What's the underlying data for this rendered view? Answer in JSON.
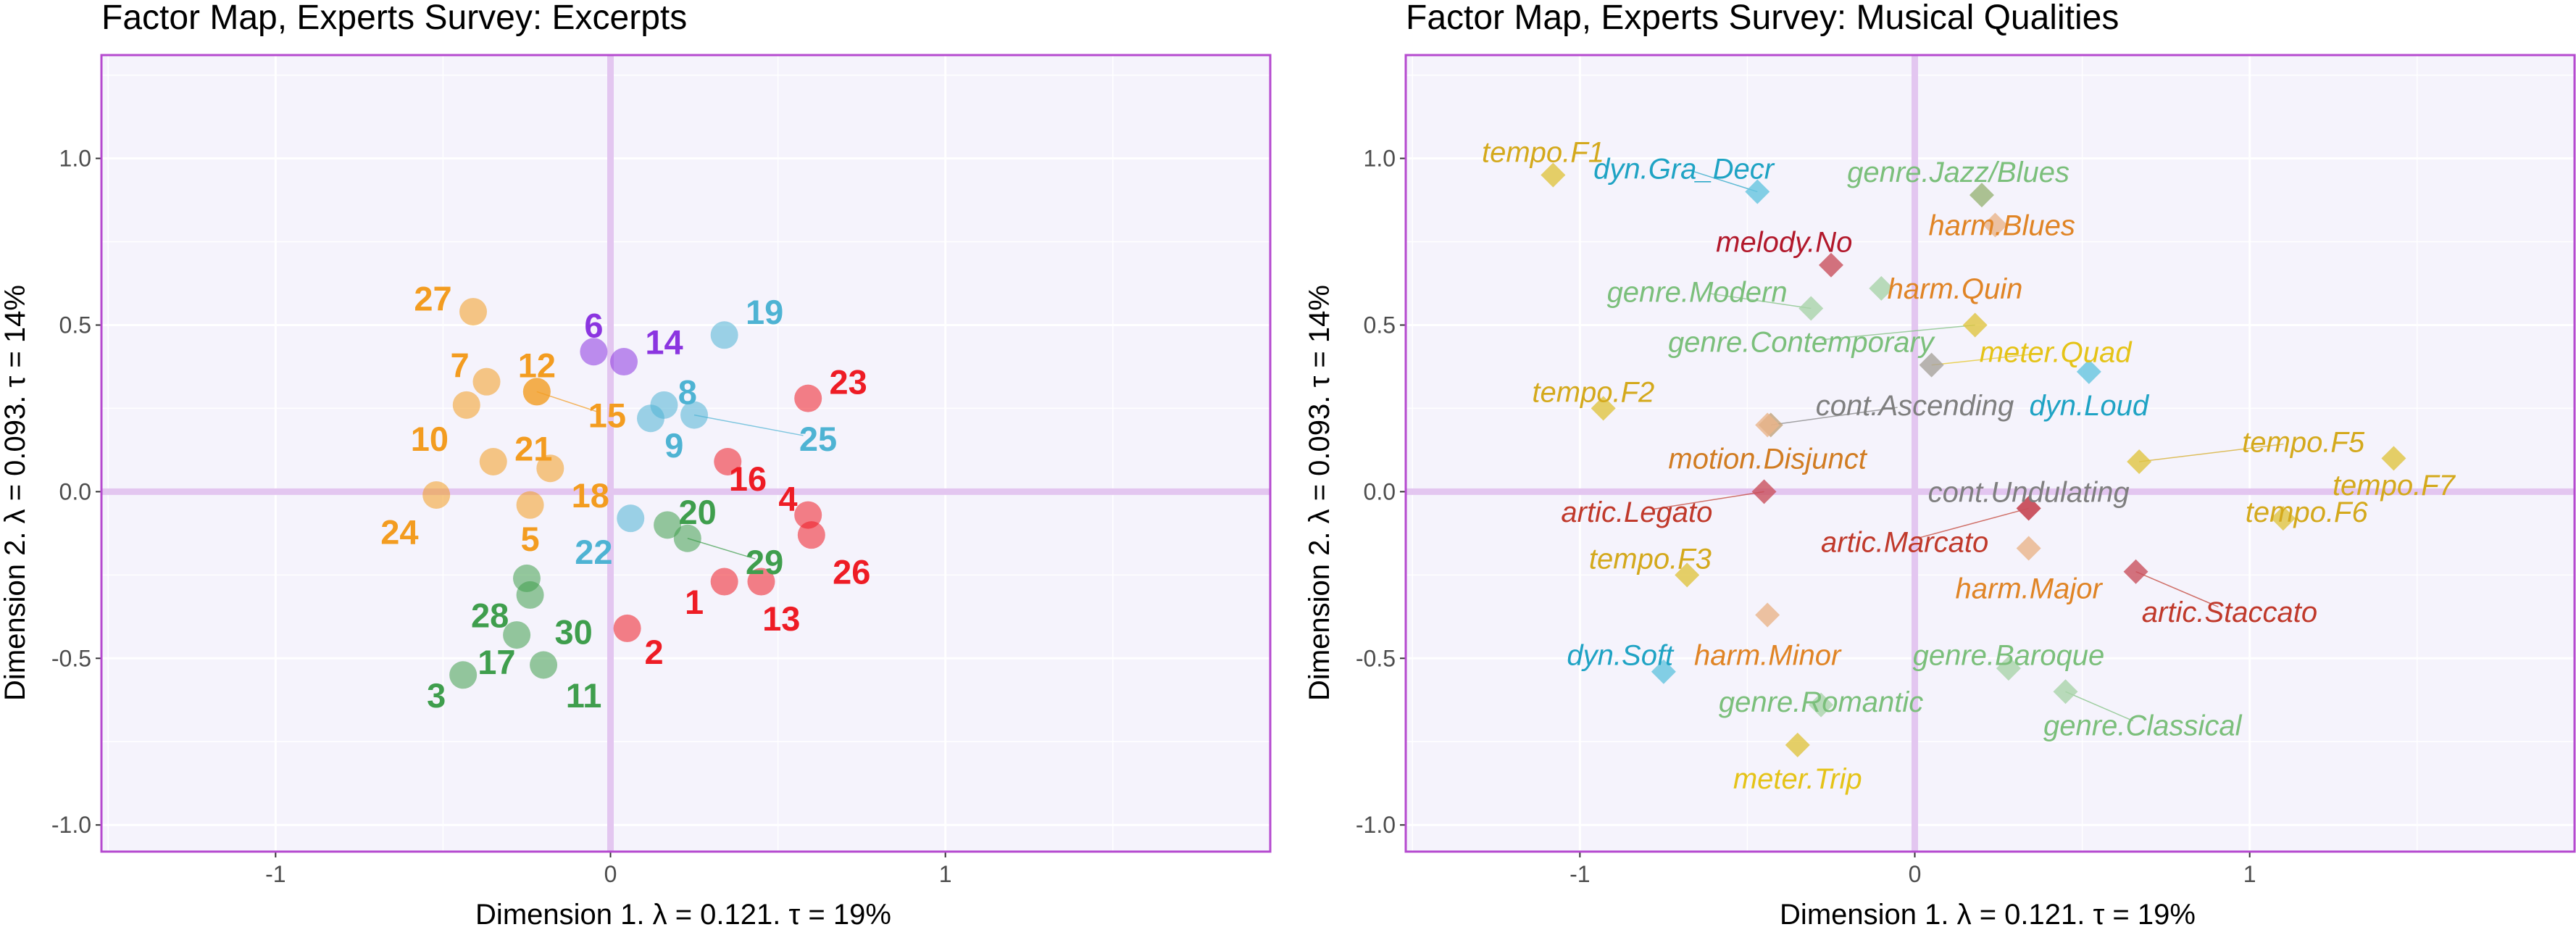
{
  "chart_data": [
    {
      "type": "scatter",
      "title": "Factor Map, Experts Survey: Excerpts",
      "xlabel": "Dimension 1.   λ = 0.121.  τ = 19%",
      "ylabel": "Dimension 2.   λ = 0.093.  τ = 14%",
      "xlim": [
        -1.52,
        1.97
      ],
      "ylim": [
        -1.08,
        1.31
      ],
      "xticks": [
        "-1",
        "0",
        "1"
      ],
      "yticks": [
        "-1.0",
        "-0.5",
        "0.0",
        "0.5",
        "1.0"
      ],
      "grid": true,
      "points": [
        {
          "label": "1",
          "x": 0.34,
          "y": -0.27,
          "color": "#EE1C25",
          "label_x": 0.25,
          "label_y": -0.33
        },
        {
          "label": "2",
          "x": 0.05,
          "y": -0.41,
          "color": "#EE1C25",
          "label_x": 0.13,
          "label_y": -0.48
        },
        {
          "label": "3",
          "x": -0.44,
          "y": -0.55,
          "color": "#3F9E4D",
          "label_x": -0.52,
          "label_y": -0.61
        },
        {
          "label": "4",
          "x": 0.59,
          "y": -0.07,
          "color": "#EE1C25",
          "label_x": 0.53,
          "label_y": -0.02
        },
        {
          "label": "5",
          "x": -0.24,
          "y": -0.04,
          "color": "#F39C20",
          "label_x": -0.24,
          "label_y": -0.14
        },
        {
          "label": "6",
          "x": -0.05,
          "y": 0.42,
          "color": "#8B35E0",
          "label_x": -0.05,
          "label_y": 0.5
        },
        {
          "label": "7",
          "x": -0.37,
          "y": 0.33,
          "color": "#F39C20",
          "label_x": -0.45,
          "label_y": 0.38
        },
        {
          "label": "8",
          "x": 0.16,
          "y": 0.26,
          "color": "#4EB3D3",
          "label_x": 0.23,
          "label_y": 0.3
        },
        {
          "label": "9",
          "x": 0.12,
          "y": 0.22,
          "color": "#4EB3D3",
          "label_x": 0.19,
          "label_y": 0.14
        },
        {
          "label": "10",
          "x": -0.43,
          "y": 0.26,
          "color": "#F39C20",
          "label_x": -0.54,
          "label_y": 0.16
        },
        {
          "label": "11",
          "x": -0.2,
          "y": -0.52,
          "color": "#3F9E4D",
          "label_x": -0.08,
          "label_y": -0.61
        },
        {
          "label": "12",
          "x": -0.22,
          "y": 0.3,
          "color": "#F39C20",
          "label_x": -0.22,
          "label_y": 0.38
        },
        {
          "label": "13",
          "x": 0.45,
          "y": -0.27,
          "color": "#EE1C25",
          "label_x": 0.51,
          "label_y": -0.38
        },
        {
          "label": "14",
          "x": 0.04,
          "y": 0.39,
          "color": "#8B35E0",
          "label_x": 0.16,
          "label_y": 0.45
        },
        {
          "label": "15",
          "x": -0.22,
          "y": 0.3,
          "color": "#F39C20",
          "label_x": -0.01,
          "label_y": 0.23
        },
        {
          "label": "16",
          "x": 0.35,
          "y": 0.09,
          "color": "#EE1C25",
          "label_x": 0.41,
          "label_y": 0.04
        },
        {
          "label": "17",
          "x": -0.28,
          "y": -0.43,
          "color": "#3F9E4D",
          "label_x": -0.34,
          "label_y": -0.51
        },
        {
          "label": "18",
          "x": -0.18,
          "y": 0.07,
          "color": "#F39C20",
          "label_x": -0.06,
          "label_y": -0.01
        },
        {
          "label": "19",
          "x": 0.34,
          "y": 0.47,
          "color": "#4EB3D3",
          "label_x": 0.46,
          "label_y": 0.54
        },
        {
          "label": "20",
          "x": 0.17,
          "y": -0.1,
          "color": "#3F9E4D",
          "label_x": 0.26,
          "label_y": -0.06
        },
        {
          "label": "21",
          "x": -0.35,
          "y": 0.09,
          "color": "#F39C20",
          "label_x": -0.23,
          "label_y": 0.13
        },
        {
          "label": "22",
          "x": 0.06,
          "y": -0.08,
          "color": "#4EB3D3",
          "label_x": -0.05,
          "label_y": -0.18
        },
        {
          "label": "23",
          "x": 0.59,
          "y": 0.28,
          "color": "#EE1C25",
          "label_x": 0.71,
          "label_y": 0.33
        },
        {
          "label": "24",
          "x": -0.52,
          "y": -0.01,
          "color": "#F39C20",
          "label_x": -0.63,
          "label_y": -0.12
        },
        {
          "label": "25",
          "x": 0.25,
          "y": 0.23,
          "color": "#4EB3D3",
          "label_x": 0.62,
          "label_y": 0.16
        },
        {
          "label": "26",
          "x": 0.6,
          "y": -0.13,
          "color": "#EE1C25",
          "label_x": 0.72,
          "label_y": -0.24
        },
        {
          "label": "27",
          "x": -0.41,
          "y": 0.54,
          "color": "#F39C20",
          "label_x": -0.53,
          "label_y": 0.58
        },
        {
          "label": "28",
          "x": -0.24,
          "y": -0.31,
          "color": "#3F9E4D",
          "label_x": -0.36,
          "label_y": -0.37
        },
        {
          "label": "29",
          "x": 0.23,
          "y": -0.14,
          "color": "#3F9E4D",
          "label_x": 0.46,
          "label_y": -0.21
        },
        {
          "label": "30",
          "x": -0.25,
          "y": -0.26,
          "color": "#3F9E4D",
          "label_x": -0.11,
          "label_y": -0.42
        }
      ]
    },
    {
      "type": "scatter",
      "title": "Factor Map, Experts Survey: Musical Qualities",
      "xlabel": "Dimension 1.   λ = 0.121.  τ = 19%",
      "ylabel": "Dimension 2.   λ = 0.093.  τ = 14%",
      "xlim": [
        -1.52,
        1.97
      ],
      "ylim": [
        -1.08,
        1.31
      ],
      "xticks": [
        "-1",
        "0",
        "1"
      ],
      "yticks": [
        "-1.0",
        "-0.5",
        "0.0",
        "0.5",
        "1.0"
      ],
      "grid": true,
      "points": [
        {
          "label": "tempo.F1",
          "x": -1.08,
          "y": 0.95,
          "color": "#E0C441",
          "text_color": "#D4A91C",
          "label_x": -1.11,
          "label_y": 1.02
        },
        {
          "label": "dyn.Gra_Decr",
          "x": -0.47,
          "y": 0.9,
          "color": "#65C4DE",
          "text_color": "#1FA3C4",
          "label_x": -0.69,
          "label_y": 0.97
        },
        {
          "label": "genre.Jazz/Blues",
          "x": 0.2,
          "y": 0.89,
          "color": "#98B477",
          "text_color": "#7BBF7B",
          "label_x": 0.13,
          "label_y": 0.96
        },
        {
          "label": "harm.Blues",
          "x": 0.24,
          "y": 0.8,
          "color": "#EAB48A",
          "text_color": "#E08425",
          "label_x": 0.26,
          "label_y": 0.8
        },
        {
          "label": "melody.No",
          "x": -0.25,
          "y": 0.68,
          "color": "#C9505D",
          "text_color": "#B2182B",
          "label_x": -0.39,
          "label_y": 0.75
        },
        {
          "label": "genre.Modern",
          "x": -0.31,
          "y": 0.55,
          "color": "#A9D3A9",
          "text_color": "#7BBF7B",
          "label_x": -0.65,
          "label_y": 0.6
        },
        {
          "label": "harm.Quin",
          "x": -0.1,
          "y": 0.61,
          "color": "#A9D3A9",
          "text_color": "#E08425",
          "label_x": 0.12,
          "label_y": 0.61
        },
        {
          "label": "genre.Contemporary",
          "x": 0.18,
          "y": 0.5,
          "color": "#E0C441",
          "text_color": "#7BBF7B",
          "label_x": -0.34,
          "label_y": 0.45
        },
        {
          "label": "meter.Quad",
          "x": 0.05,
          "y": 0.38,
          "color": "#A8A29B",
          "text_color": "#E5C317",
          "label_x": 0.42,
          "label_y": 0.42
        },
        {
          "label": "dyn.Loud",
          "x": 0.52,
          "y": 0.36,
          "color": "#65C4DE",
          "text_color": "#1FA3C4",
          "label_x": 0.52,
          "label_y": 0.26
        },
        {
          "label": "tempo.F2",
          "x": -0.93,
          "y": 0.25,
          "color": "#E0C441",
          "text_color": "#D4A91C",
          "label_x": -0.96,
          "label_y": 0.3
        },
        {
          "label": "cont.Ascending",
          "x": -0.43,
          "y": 0.2,
          "color": "#C2A379",
          "text_color": "#7F7F7F",
          "label_x": 0.0,
          "label_y": 0.26
        },
        {
          "label": "motion.Disjunct",
          "x": -0.44,
          "y": 0.2,
          "color": "#EAB48A",
          "text_color": "#D17C22",
          "label_x": -0.44,
          "label_y": 0.1
        },
        {
          "label": "tempo.F5",
          "x": 0.67,
          "y": 0.09,
          "color": "#E0C441",
          "text_color": "#D4A91C",
          "label_x": 1.16,
          "label_y": 0.15
        },
        {
          "label": "tempo.F7",
          "x": 1.43,
          "y": 0.1,
          "color": "#E0C441",
          "text_color": "#D4A91C",
          "label_x": 1.43,
          "label_y": 0.02
        },
        {
          "label": "cont.Undulating",
          "x": 0.34,
          "y": -0.05,
          "color": "#C9505D",
          "text_color": "#7F7F7F",
          "label_x": 0.34,
          "label_y": 0.0
        },
        {
          "label": "tempo.F6",
          "x": 1.1,
          "y": -0.08,
          "color": "#E0C441",
          "text_color": "#D4A91C",
          "label_x": 1.17,
          "label_y": -0.06
        },
        {
          "label": "artic.Legato",
          "x": -0.45,
          "y": 0.0,
          "color": "#C9505D",
          "text_color": "#C0392B",
          "label_x": -0.83,
          "label_y": -0.06
        },
        {
          "label": "artic.Marcato",
          "x": 0.34,
          "y": -0.05,
          "color": "#C9505D",
          "text_color": "#C0392B",
          "label_x": -0.03,
          "label_y": -0.15
        },
        {
          "label": "tempo.F3",
          "x": -0.68,
          "y": -0.25,
          "color": "#E0C441",
          "text_color": "#D4A91C",
          "label_x": -0.79,
          "label_y": -0.2
        },
        {
          "label": "harm.Major",
          "x": 0.34,
          "y": -0.17,
          "color": "#EAB48A",
          "text_color": "#E08425",
          "label_x": 0.34,
          "label_y": -0.29
        },
        {
          "label": "artic.Staccato",
          "x": 0.66,
          "y": -0.24,
          "color": "#C9505D",
          "text_color": "#C0392B",
          "label_x": 0.94,
          "label_y": -0.36
        },
        {
          "label": "harm.Minor",
          "x": -0.44,
          "y": -0.37,
          "color": "#EAB48A",
          "text_color": "#E08425",
          "label_x": -0.44,
          "label_y": -0.49
        },
        {
          "label": "genre.Baroque",
          "x": 0.28,
          "y": -0.53,
          "color": "#A9D3A9",
          "text_color": "#7BBF7B",
          "label_x": 0.28,
          "label_y": -0.49
        },
        {
          "label": "dyn.Soft",
          "x": -0.75,
          "y": -0.54,
          "color": "#65C4DE",
          "text_color": "#1FA3C4",
          "label_x": -0.88,
          "label_y": -0.49
        },
        {
          "label": "genre.Romantic",
          "x": -0.28,
          "y": -0.64,
          "color": "#A9D3A9",
          "text_color": "#7BBF7B",
          "label_x": -0.28,
          "label_y": -0.63
        },
        {
          "label": "genre.Classical",
          "x": 0.45,
          "y": -0.6,
          "color": "#A9D3A9",
          "text_color": "#7BBF7B",
          "label_x": 0.68,
          "label_y": -0.7
        },
        {
          "label": "meter.Trip",
          "x": -0.35,
          "y": -0.76,
          "color": "#E0C441",
          "text_color": "#E5C317",
          "label_x": -0.35,
          "label_y": -0.86
        }
      ]
    }
  ],
  "colors": {
    "panel_bg": "#F5F3FC",
    "panel_border": "#B54ACF",
    "zero_line": "#E3C6F0",
    "grid": "#FFFFFF",
    "leader_line": "#666666"
  }
}
